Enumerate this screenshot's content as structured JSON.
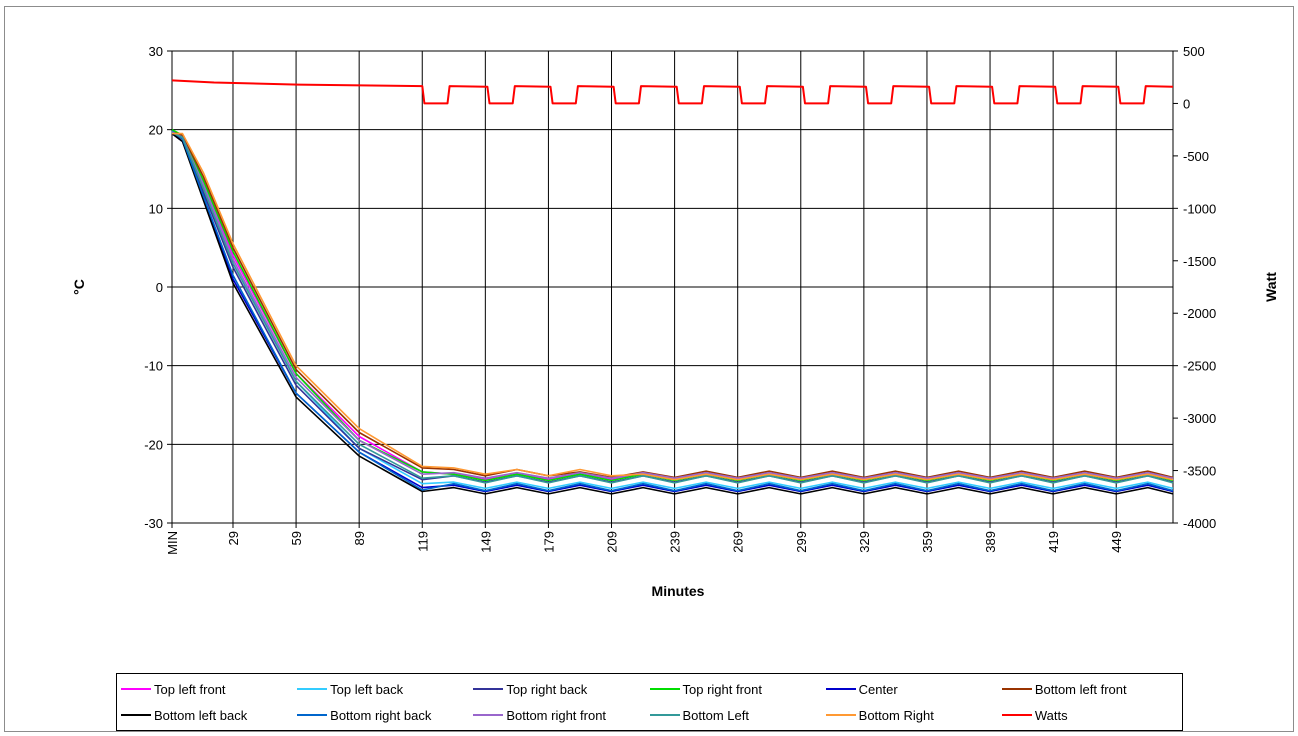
{
  "chart_data": {
    "type": "line",
    "title": "",
    "xlabel": "Minutes",
    "ylabel": "°C",
    "y2label": "Watt",
    "xlim": [
      0,
      476
    ],
    "ylim": [
      -30,
      30
    ],
    "y2lim": [
      -4000,
      500
    ],
    "yticks": [
      -30,
      -20,
      -10,
      0,
      10,
      20,
      30
    ],
    "y2ticks": [
      -4000,
      -3500,
      -3000,
      -2500,
      -2000,
      -1500,
      -1000,
      -500,
      0,
      500
    ],
    "x_tick_values": [
      0,
      29,
      59,
      89,
      119,
      149,
      179,
      209,
      239,
      269,
      299,
      329,
      359,
      389,
      419,
      449
    ],
    "x_tick_labels": [
      "MIN",
      "29",
      "59",
      "89",
      "119",
      "149",
      "179",
      "209",
      "239",
      "269",
      "299",
      "329",
      "359",
      "389",
      "419",
      "449"
    ],
    "grid": true,
    "legend_position": "bottom",
    "series": [
      {
        "name": "Top left front",
        "color": "#ff00ff",
        "axis": "left",
        "x": [
          0,
          5,
          15,
          29,
          59,
          89,
          119,
          134,
          149,
          164,
          179,
          194,
          209,
          224,
          239,
          254,
          269,
          284,
          299,
          314,
          329,
          344,
          359,
          374,
          389,
          404,
          419,
          434,
          449,
          464,
          476
        ],
        "y": [
          19.5,
          19.0,
          13.5,
          4.0,
          -11.0,
          -19.0,
          -23.5,
          -23.8,
          -24.5,
          -23.8,
          -24.5,
          -23.8,
          -24.5,
          -23.8,
          -24.5,
          -23.8,
          -24.5,
          -23.8,
          -24.5,
          -23.8,
          -24.5,
          -23.8,
          -24.5,
          -23.8,
          -24.5,
          -23.8,
          -24.5,
          -23.8,
          -24.5,
          -23.8,
          -24.5
        ]
      },
      {
        "name": "Top left back",
        "color": "#33ccff",
        "axis": "left",
        "x": [
          0,
          5,
          15,
          29,
          59,
          89,
          119,
          134,
          149,
          164,
          179,
          194,
          209,
          224,
          239,
          254,
          269,
          284,
          299,
          314,
          329,
          344,
          359,
          374,
          389,
          404,
          419,
          434,
          449,
          464,
          476
        ],
        "y": [
          19.8,
          19.2,
          13.0,
          3.5,
          -12.0,
          -20.5,
          -25.0,
          -24.8,
          -25.6,
          -24.8,
          -25.6,
          -24.8,
          -25.6,
          -24.8,
          -25.6,
          -24.8,
          -25.6,
          -24.8,
          -25.6,
          -24.8,
          -25.6,
          -24.8,
          -25.6,
          -24.8,
          -25.6,
          -24.8,
          -25.6,
          -24.8,
          -25.6,
          -24.8,
          -25.6
        ]
      },
      {
        "name": "Top right back",
        "color": "#333399",
        "axis": "left",
        "x": [
          0,
          5,
          15,
          29,
          59,
          89,
          119,
          134,
          149,
          164,
          179,
          194,
          209,
          224,
          239,
          254,
          269,
          284,
          299,
          314,
          329,
          344,
          359,
          374,
          389,
          404,
          419,
          434,
          449,
          464,
          476
        ],
        "y": [
          19.6,
          18.8,
          12.0,
          2.5,
          -12.5,
          -20.5,
          -24.5,
          -24.0,
          -24.8,
          -24.0,
          -24.8,
          -24.0,
          -24.8,
          -24.0,
          -24.8,
          -24.0,
          -24.8,
          -24.0,
          -24.8,
          -24.0,
          -24.8,
          -24.0,
          -24.8,
          -24.0,
          -24.8,
          -24.0,
          -24.8,
          -24.0,
          -24.8,
          -24.0,
          -24.8
        ]
      },
      {
        "name": "Top right front",
        "color": "#00dd00",
        "axis": "left",
        "x": [
          0,
          5,
          15,
          29,
          59,
          89,
          119,
          134,
          149,
          164,
          179,
          194,
          209,
          224,
          239,
          254,
          269,
          284,
          299,
          314,
          329,
          344,
          359,
          374,
          389,
          404,
          419,
          434,
          449,
          464,
          476
        ],
        "y": [
          20.0,
          19.3,
          13.5,
          4.5,
          -11.0,
          -19.5,
          -23.5,
          -23.8,
          -24.6,
          -23.8,
          -24.6,
          -23.8,
          -24.6,
          -23.8,
          -24.6,
          -23.8,
          -24.6,
          -23.8,
          -24.6,
          -23.8,
          -24.6,
          -23.8,
          -24.6,
          -23.8,
          -24.6,
          -23.8,
          -24.6,
          -23.8,
          -24.6,
          -23.8,
          -24.6
        ]
      },
      {
        "name": "Center",
        "color": "#0000cc",
        "axis": "left",
        "x": [
          0,
          5,
          15,
          29,
          59,
          89,
          119,
          134,
          149,
          164,
          179,
          194,
          209,
          224,
          239,
          254,
          269,
          284,
          299,
          314,
          329,
          344,
          359,
          374,
          389,
          404,
          419,
          434,
          449,
          464,
          476
        ],
        "y": [
          19.5,
          18.5,
          11.5,
          1.0,
          -13.5,
          -21.0,
          -25.5,
          -25.2,
          -26.0,
          -25.2,
          -26.0,
          -25.2,
          -26.0,
          -25.2,
          -26.0,
          -25.2,
          -26.0,
          -25.2,
          -26.0,
          -25.2,
          -26.0,
          -25.2,
          -26.0,
          -25.2,
          -26.0,
          -25.2,
          -26.0,
          -25.2,
          -26.0,
          -25.2,
          -26.0
        ]
      },
      {
        "name": "Bottom left front",
        "color": "#993300",
        "axis": "left",
        "x": [
          0,
          5,
          15,
          29,
          59,
          89,
          119,
          134,
          149,
          164,
          179,
          194,
          209,
          224,
          239,
          254,
          269,
          284,
          299,
          314,
          329,
          344,
          359,
          374,
          389,
          404,
          419,
          434,
          449,
          464,
          476
        ],
        "y": [
          19.7,
          19.3,
          14.0,
          5.0,
          -10.5,
          -18.5,
          -23.0,
          -23.2,
          -24.0,
          -23.2,
          -24.0,
          -23.5,
          -24.2,
          -23.5,
          -24.2,
          -23.4,
          -24.2,
          -23.4,
          -24.2,
          -23.4,
          -24.2,
          -23.4,
          -24.2,
          -23.4,
          -24.2,
          -23.4,
          -24.2,
          -23.4,
          -24.2,
          -23.4,
          -24.2
        ]
      },
      {
        "name": "Bottom left back",
        "color": "#000000",
        "axis": "left",
        "x": [
          0,
          5,
          15,
          29,
          59,
          89,
          119,
          134,
          149,
          164,
          179,
          194,
          209,
          224,
          239,
          254,
          269,
          284,
          299,
          314,
          329,
          344,
          359,
          374,
          389,
          404,
          419,
          434,
          449,
          464,
          476
        ],
        "y": [
          19.5,
          18.5,
          11.0,
          0.5,
          -14.0,
          -21.5,
          -26.0,
          -25.5,
          -26.3,
          -25.5,
          -26.3,
          -25.5,
          -26.3,
          -25.5,
          -26.3,
          -25.5,
          -26.3,
          -25.5,
          -26.3,
          -25.5,
          -26.3,
          -25.5,
          -26.3,
          -25.5,
          -26.3,
          -25.5,
          -26.3,
          -25.5,
          -26.3,
          -25.5,
          -26.3
        ]
      },
      {
        "name": "Bottom right back",
        "color": "#0066cc",
        "axis": "left",
        "x": [
          0,
          5,
          15,
          29,
          59,
          89,
          119,
          134,
          149,
          164,
          179,
          194,
          209,
          224,
          239,
          254,
          269,
          284,
          299,
          314,
          329,
          344,
          359,
          374,
          389,
          404,
          419,
          434,
          449,
          464,
          476
        ],
        "y": [
          19.8,
          18.8,
          11.5,
          1.5,
          -13.5,
          -21.0,
          -25.8,
          -25.0,
          -25.9,
          -25.0,
          -25.9,
          -25.0,
          -25.9,
          -25.0,
          -25.9,
          -25.0,
          -25.9,
          -25.0,
          -25.9,
          -25.0,
          -25.9,
          -25.0,
          -25.9,
          -25.0,
          -25.9,
          -25.0,
          -25.9,
          -25.0,
          -25.9,
          -25.0,
          -25.9
        ]
      },
      {
        "name": "Bottom right front",
        "color": "#9966cc",
        "axis": "left",
        "x": [
          0,
          5,
          15,
          29,
          59,
          89,
          119,
          134,
          149,
          164,
          179,
          194,
          209,
          224,
          239,
          254,
          269,
          284,
          299,
          314,
          329,
          344,
          359,
          374,
          389,
          404,
          419,
          434,
          449,
          464,
          476
        ],
        "y": [
          19.7,
          19.0,
          13.0,
          3.5,
          -11.5,
          -19.5,
          -23.8,
          -23.6,
          -24.3,
          -23.6,
          -24.3,
          -23.6,
          -24.3,
          -23.6,
          -24.3,
          -23.6,
          -24.3,
          -23.6,
          -24.3,
          -23.6,
          -24.3,
          -23.6,
          -24.3,
          -23.6,
          -24.3,
          -23.6,
          -24.3,
          -23.6,
          -24.3,
          -23.6,
          -24.3
        ]
      },
      {
        "name": "Bottom Left",
        "color": "#339999",
        "axis": "left",
        "x": [
          0,
          5,
          15,
          29,
          59,
          89,
          119,
          134,
          149,
          164,
          179,
          194,
          209,
          224,
          239,
          254,
          269,
          284,
          299,
          314,
          329,
          344,
          359,
          374,
          389,
          404,
          419,
          434,
          449,
          464,
          476
        ],
        "y": [
          19.6,
          19.0,
          12.5,
          3.0,
          -12.0,
          -20.0,
          -24.3,
          -24.0,
          -24.9,
          -24.0,
          -24.9,
          -24.0,
          -24.9,
          -24.0,
          -24.9,
          -24.0,
          -24.9,
          -24.0,
          -24.9,
          -24.0,
          -24.9,
          -24.0,
          -24.9,
          -24.0,
          -24.9,
          -24.0,
          -24.9,
          -24.0,
          -24.9,
          -24.0,
          -24.9
        ]
      },
      {
        "name": "Bottom Right",
        "color": "#ff9933",
        "axis": "left",
        "x": [
          0,
          5,
          15,
          29,
          59,
          89,
          119,
          134,
          149,
          164,
          179,
          194,
          209,
          224,
          239,
          254,
          269,
          284,
          299,
          314,
          329,
          344,
          359,
          374,
          389,
          404,
          419,
          434,
          449,
          464,
          476
        ],
        "y": [
          19.5,
          19.5,
          14.5,
          5.5,
          -10.0,
          -18.0,
          -22.8,
          -23.0,
          -23.8,
          -23.2,
          -24.0,
          -23.2,
          -24.0,
          -23.8,
          -24.5,
          -23.8,
          -24.5,
          -23.8,
          -24.5,
          -23.8,
          -24.5,
          -23.8,
          -24.5,
          -23.8,
          -24.5,
          -23.8,
          -24.5,
          -23.8,
          -24.5,
          -23.8,
          -24.5
        ]
      },
      {
        "name": "Watts",
        "color": "#ff0000",
        "axis": "right",
        "x": [
          0,
          20,
          60,
          100,
          119,
          120,
          131,
          132,
          150,
          151,
          162,
          163,
          180,
          181,
          192,
          193,
          210,
          211,
          222,
          223,
          240,
          241,
          252,
          253,
          270,
          271,
          282,
          283,
          300,
          301,
          312,
          313,
          330,
          331,
          342,
          343,
          360,
          361,
          372,
          373,
          390,
          391,
          402,
          403,
          420,
          421,
          432,
          433,
          450,
          451,
          462,
          463,
          476
        ],
        "y": [
          220,
          200,
          180,
          170,
          165,
          0,
          0,
          165,
          160,
          0,
          0,
          165,
          160,
          0,
          0,
          165,
          160,
          0,
          0,
          165,
          160,
          0,
          0,
          165,
          160,
          0,
          0,
          165,
          160,
          0,
          0,
          165,
          160,
          0,
          0,
          165,
          160,
          0,
          0,
          165,
          160,
          0,
          0,
          165,
          160,
          0,
          0,
          165,
          160,
          0,
          0,
          165,
          160
        ]
      }
    ]
  }
}
